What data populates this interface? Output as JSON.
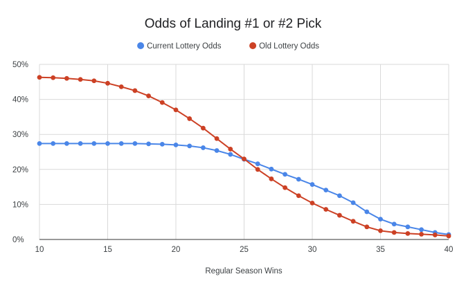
{
  "chart_data": {
    "type": "line",
    "title": "Odds of Landing #1 or #2 Pick",
    "xlabel": "Regular Season Wins",
    "ylabel": "",
    "x": [
      10,
      11,
      12,
      13,
      14,
      15,
      16,
      17,
      18,
      19,
      20,
      21,
      22,
      23,
      24,
      25,
      26,
      27,
      28,
      29,
      30,
      31,
      32,
      33,
      34,
      35,
      36,
      37,
      38,
      39,
      40
    ],
    "xlim": [
      10,
      40
    ],
    "ylim": [
      0,
      50
    ],
    "x_ticks": [
      "10",
      "15",
      "20",
      "25",
      "30",
      "35",
      "40"
    ],
    "y_ticks": [
      "0%",
      "10%",
      "20%",
      "30%",
      "40%",
      "50%"
    ],
    "grid": true,
    "legend_position": "top",
    "series": [
      {
        "name": "Current Lottery Odds",
        "color": "#4a86e8",
        "values": [
          27.4,
          27.4,
          27.4,
          27.4,
          27.4,
          27.4,
          27.4,
          27.4,
          27.3,
          27.2,
          27.0,
          26.7,
          26.2,
          25.4,
          24.3,
          22.9,
          21.6,
          20.1,
          18.6,
          17.2,
          15.7,
          14.1,
          12.5,
          10.5,
          7.9,
          5.8,
          4.4,
          3.6,
          2.8,
          2.0,
          1.4
        ]
      },
      {
        "name": "Old Lottery Odds",
        "color": "#cc4125",
        "values": [
          46.3,
          46.2,
          46.0,
          45.7,
          45.3,
          44.6,
          43.6,
          42.5,
          41.0,
          39.1,
          37.0,
          34.5,
          31.8,
          28.8,
          25.8,
          23.0,
          20.0,
          17.3,
          14.8,
          12.5,
          10.4,
          8.6,
          6.9,
          5.2,
          3.6,
          2.5,
          2.0,
          1.7,
          1.5,
          1.3,
          1.0
        ]
      }
    ]
  }
}
